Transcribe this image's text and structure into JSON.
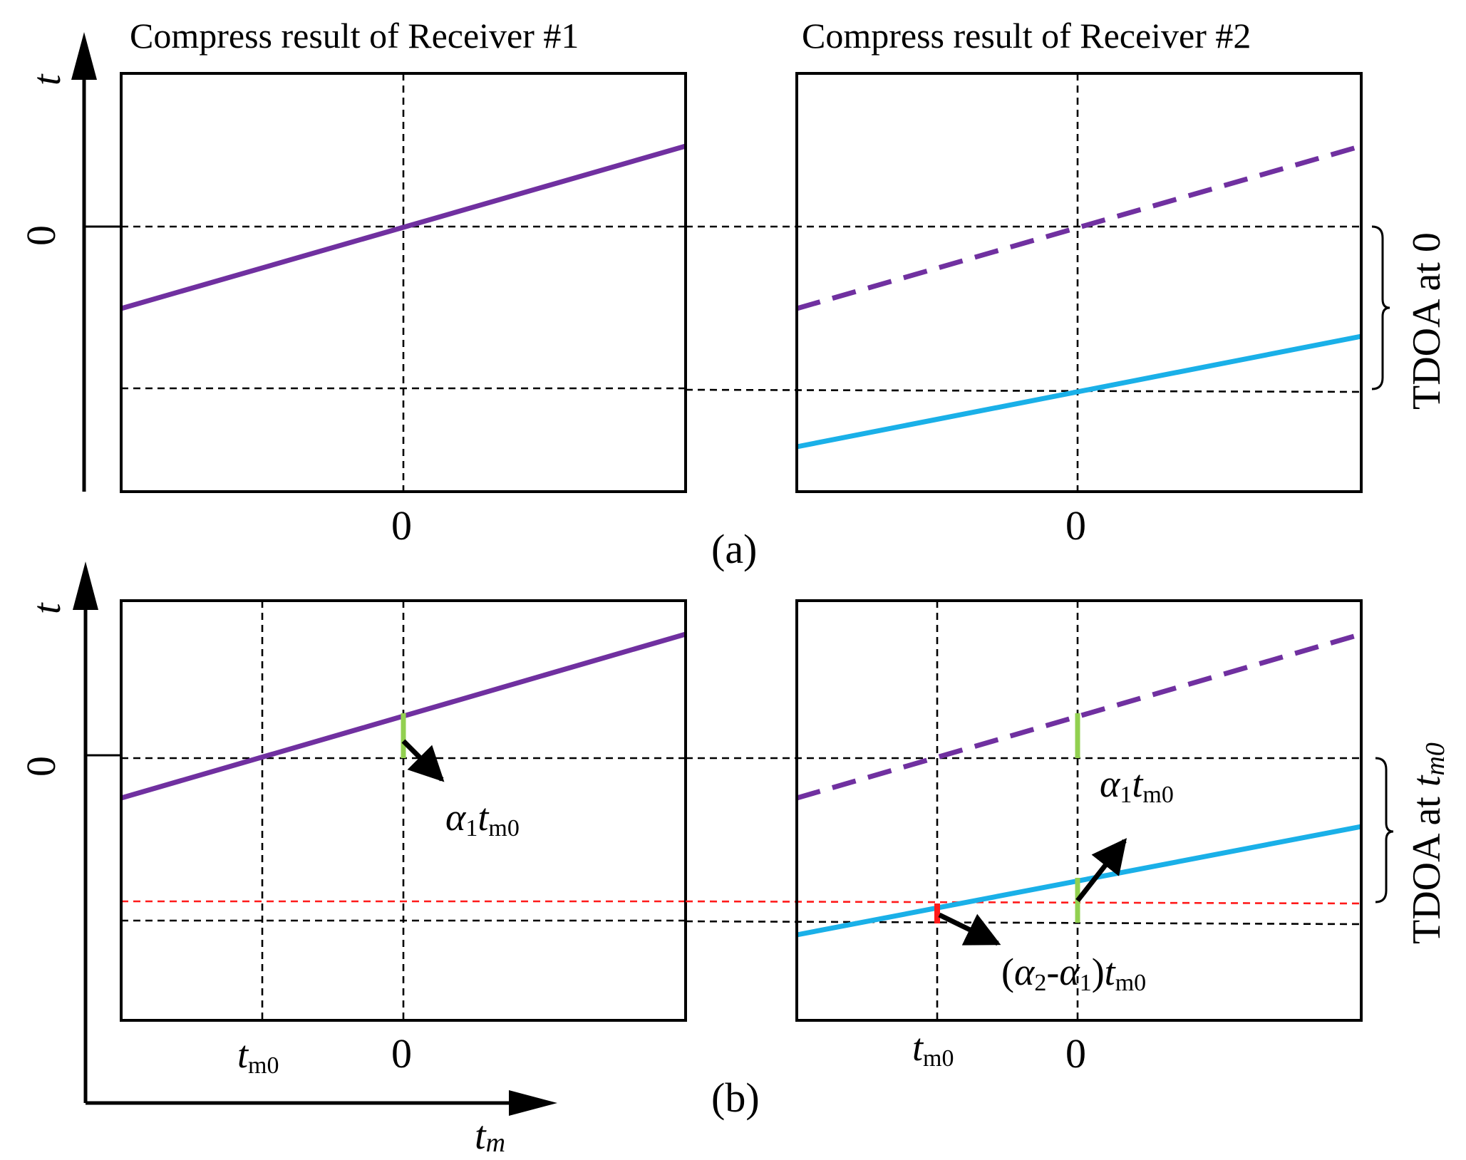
{
  "titles": {
    "receiver1": "Compress result of Receiver #1",
    "receiver2": "Compress result of Receiver #2"
  },
  "axes": {
    "vertical_label": "t",
    "horizontal_label_main": "t",
    "horizontal_label_sub": "m",
    "zero": "0"
  },
  "panel_labels": {
    "a": "(a)",
    "b": "(b)"
  },
  "tick_labels": {
    "tm0_main": "t",
    "tm0_sub": "m0"
  },
  "brackets": {
    "tdoa_zero": "TDOA at 0",
    "tdoa_tm0_prefix": "TDOA at ",
    "tdoa_tm0_var": "t",
    "tdoa_tm0_sub": "m0"
  },
  "annotations": {
    "alpha1": "α",
    "one": "1",
    "two": "2",
    "t": "t",
    "m0": "m0",
    "open_paren": "(",
    "minus": "-",
    "close_paren": ")"
  },
  "colors": {
    "receiver1_line": "#7030a0",
    "receiver2_line": "#1ab0e8",
    "offset_marker": "#92d050",
    "difference_marker": "#ff1a1a",
    "reference_dash": "#000000"
  }
}
